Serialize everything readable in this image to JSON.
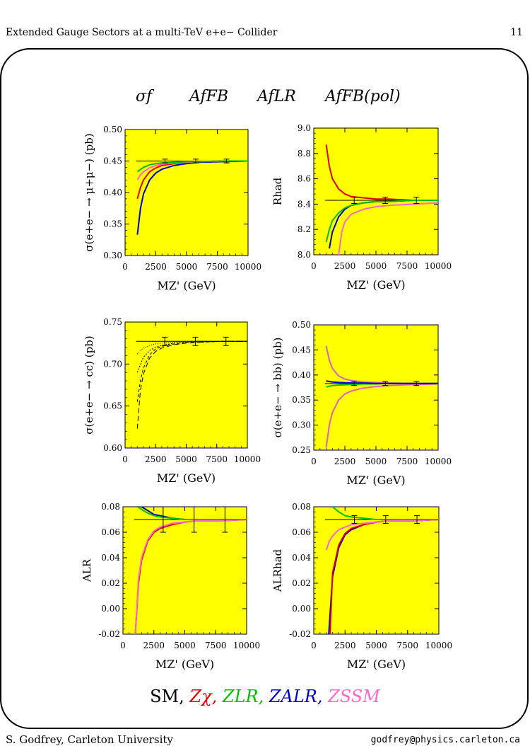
{
  "header": {
    "title": "Extended Gauge Sectors at a multi-TeV e+e− Collider",
    "page_number": "11"
  },
  "headline": {
    "sigma": "σf",
    "afb": "AfFB",
    "alr": "AfLR",
    "afb_pol": "AfFB(pol)"
  },
  "legend": {
    "items": [
      {
        "text": "SM,",
        "color": "#000000"
      },
      {
        "text": "Zχ,",
        "color": "#e00000"
      },
      {
        "text": "ZLR,",
        "color": "#00c000"
      },
      {
        "text": "ZALR,",
        "color": "#0000cc"
      },
      {
        "text": "ZSSM",
        "color": "#ff66cc"
      }
    ]
  },
  "footer": {
    "left": "S. Godfrey, Carleton University",
    "right": "godfrey@physics.carleton.ca"
  },
  "chart_data": [
    {
      "type": "line",
      "id": "mumu",
      "xlabel": "MZ'   (GeV)",
      "ylabel": "σ(e+e− → μ+μ−)  (pb)",
      "xlim": [
        0,
        10000
      ],
      "ylim": [
        0.3,
        0.5
      ],
      "xticks": [
        "0",
        "2500",
        "5000",
        "7500",
        "10000"
      ],
      "yticks": [
        "0.30",
        "0.35",
        "0.40",
        "0.45",
        "0.50"
      ],
      "sm_value": 0.45,
      "series": [
        {
          "color": "#0000cc",
          "x": [
            1000,
            1250,
            1500,
            2000,
            2500,
            3000,
            4000,
            5000,
            6000,
            8000,
            10000
          ],
          "y": [
            0.333,
            0.375,
            0.398,
            0.42,
            0.431,
            0.437,
            0.443,
            0.446,
            0.448,
            0.449,
            0.45
          ]
        },
        {
          "color": "#e00000",
          "x": [
            1000,
            1250,
            1500,
            2000,
            2500,
            3000,
            4000,
            5000,
            6000,
            8000,
            10000
          ],
          "y": [
            0.39,
            0.408,
            0.42,
            0.433,
            0.439,
            0.443,
            0.446,
            0.448,
            0.449,
            0.45,
            0.45
          ]
        },
        {
          "color": "#ff66cc",
          "x": [
            1000,
            1250,
            1500,
            2000,
            2500,
            3000,
            4000,
            5000,
            6000,
            8000,
            10000
          ],
          "y": [
            0.42,
            0.428,
            0.433,
            0.439,
            0.443,
            0.445,
            0.447,
            0.448,
            0.449,
            0.45,
            0.45
          ]
        },
        {
          "color": "#00c000",
          "x": [
            1000,
            1500,
            2000,
            2500,
            3000,
            4000,
            5000,
            6000,
            8000,
            10000
          ],
          "y": [
            0.433,
            0.44,
            0.444,
            0.446,
            0.447,
            0.448,
            0.449,
            0.449,
            0.45,
            0.45
          ]
        }
      ],
      "errorbars": [
        {
          "x": 3250,
          "y": 0.45,
          "err": 0.003
        },
        {
          "x": 5750,
          "y": 0.45,
          "err": 0.003
        },
        {
          "x": 8250,
          "y": 0.45,
          "err": 0.003
        }
      ]
    },
    {
      "type": "line",
      "id": "rhad",
      "xlabel": "MZ'   (GeV)",
      "ylabel": "Rhad",
      "xlim": [
        0,
        10000
      ],
      "ylim": [
        8.0,
        9.0
      ],
      "xticks": [
        "0",
        "2500",
        "5000",
        "7500",
        "10000"
      ],
      "yticks": [
        "8.0",
        "8.2",
        "8.4",
        "8.6",
        "8.8",
        "9.0"
      ],
      "sm_value": 8.43,
      "series": [
        {
          "color": "#e00000",
          "x": [
            1000,
            1250,
            1500,
            2000,
            2500,
            3000,
            4000,
            5000,
            6000,
            8000,
            10000
          ],
          "y": [
            8.87,
            8.7,
            8.6,
            8.52,
            8.48,
            8.46,
            8.45,
            8.44,
            8.44,
            8.43,
            8.43
          ]
        },
        {
          "color": "#ff66cc",
          "x": [
            2000,
            2250,
            2500,
            3000,
            4000,
            5000,
            6000,
            8000,
            10000
          ],
          "y": [
            8.0,
            8.18,
            8.26,
            8.32,
            8.36,
            8.38,
            8.39,
            8.4,
            8.41
          ]
        },
        {
          "color": "#0000cc",
          "x": [
            1250,
            1500,
            2000,
            2500,
            3000,
            4000,
            5000,
            6000,
            8000,
            10000
          ],
          "y": [
            8.05,
            8.18,
            8.3,
            8.36,
            8.39,
            8.41,
            8.42,
            8.42,
            8.43,
            8.43
          ]
        },
        {
          "color": "#00c000",
          "x": [
            1000,
            1250,
            1500,
            2000,
            2500,
            3000,
            4000,
            5000,
            6000,
            8000,
            10000
          ],
          "y": [
            8.1,
            8.2,
            8.27,
            8.33,
            8.37,
            8.39,
            8.41,
            8.42,
            8.42,
            8.43,
            8.43
          ]
        }
      ],
      "errorbars": [
        {
          "x": 3250,
          "y": 8.43,
          "err": 0.025
        },
        {
          "x": 5750,
          "y": 8.43,
          "err": 0.025
        },
        {
          "x": 8250,
          "y": 8.43,
          "err": 0.025
        }
      ]
    },
    {
      "type": "line",
      "id": "cc",
      "xlabel": "MZ'   (GeV)",
      "ylabel": "σ(e+e− → cc) (pb)",
      "xlim": [
        0,
        10000
      ],
      "ylim": [
        0.6,
        0.75
      ],
      "xticks": [
        "0",
        "2500",
        "5000",
        "7500",
        "10000"
      ],
      "yticks": [
        "0.60",
        "0.65",
        "0.70",
        "0.75"
      ],
      "sm_value": 0.727,
      "series": [
        {
          "color": "#000000",
          "dash": "7,4",
          "x": [
            1000,
            1250,
            1500,
            2000,
            2500,
            3000,
            4000,
            5000,
            6000,
            8000,
            10000
          ],
          "y": [
            0.623,
            0.668,
            0.688,
            0.707,
            0.715,
            0.719,
            0.723,
            0.725,
            0.726,
            0.727,
            0.727
          ]
        },
        {
          "color": "#000000",
          "dash": "4,3",
          "x": [
            1000,
            1250,
            1500,
            2000,
            2500,
            3000,
            4000,
            5000,
            6000,
            8000,
            10000
          ],
          "y": [
            0.655,
            0.68,
            0.695,
            0.711,
            0.718,
            0.721,
            0.724,
            0.726,
            0.726,
            0.727,
            0.727
          ]
        },
        {
          "color": "#000000",
          "dash": "2,2",
          "x": [
            1000,
            1500,
            2000,
            2500,
            3000,
            4000,
            5000,
            6000,
            8000,
            10000
          ],
          "y": [
            0.69,
            0.708,
            0.716,
            0.72,
            0.722,
            0.725,
            0.726,
            0.727,
            0.727,
            0.727
          ]
        },
        {
          "color": "#000000",
          "dash": "1,2",
          "x": [
            1000,
            1500,
            2000,
            2500,
            3000,
            4000,
            5000,
            6000,
            8000,
            10000
          ],
          "y": [
            0.712,
            0.719,
            0.722,
            0.724,
            0.725,
            0.726,
            0.727,
            0.727,
            0.727,
            0.727
          ]
        }
      ],
      "errorbars": [
        {
          "x": 3250,
          "y": 0.727,
          "err": 0.005
        },
        {
          "x": 5750,
          "y": 0.727,
          "err": 0.005
        },
        {
          "x": 8250,
          "y": 0.727,
          "err": 0.005
        }
      ]
    },
    {
      "type": "line",
      "id": "bb",
      "xlabel": "MZ'   (GeV)",
      "ylabel": "σ(e+e− → bb) (pb)",
      "xlim": [
        0,
        10000
      ],
      "ylim": [
        0.25,
        0.5
      ],
      "xticks": [
        "0",
        "2500",
        "5000",
        "7500",
        "10000"
      ],
      "yticks": [
        "0.25",
        "0.30",
        "0.35",
        "0.40",
        "0.45",
        "0.50"
      ],
      "sm_value": 0.383,
      "series": [
        {
          "color": "#e060c0",
          "x": [
            1000,
            1250,
            1500,
            2000,
            2500,
            3000,
            4000,
            5000,
            6000,
            8000,
            10000
          ],
          "y": [
            0.458,
            0.43,
            0.413,
            0.398,
            0.392,
            0.389,
            0.386,
            0.385,
            0.384,
            0.383,
            0.383
          ]
        },
        {
          "color": "#e060c0",
          "x": [
            1000,
            1250,
            1500,
            2000,
            2500,
            3000,
            4000,
            5000,
            6000,
            8000,
            10000
          ],
          "y": [
            0.255,
            0.3,
            0.325,
            0.35,
            0.362,
            0.368,
            0.374,
            0.377,
            0.379,
            0.381,
            0.382
          ]
        },
        {
          "color": "#00c000",
          "x": [
            1000,
            1500,
            2000,
            3000,
            4000,
            5000,
            6000,
            8000,
            10000
          ],
          "y": [
            0.376,
            0.379,
            0.38,
            0.381,
            0.382,
            0.382,
            0.383,
            0.383,
            0.383
          ]
        },
        {
          "color": "#0000cc",
          "x": [
            1000,
            1500,
            2000,
            3000,
            4000,
            5000,
            6000,
            8000,
            10000
          ],
          "y": [
            0.388,
            0.386,
            0.385,
            0.384,
            0.384,
            0.383,
            0.383,
            0.383,
            0.383
          ]
        }
      ],
      "errorbars": [
        {
          "x": 3250,
          "y": 0.383,
          "err": 0.004
        },
        {
          "x": 5750,
          "y": 0.383,
          "err": 0.004
        },
        {
          "x": 8250,
          "y": 0.383,
          "err": 0.004
        }
      ]
    },
    {
      "type": "line",
      "id": "alr",
      "xlabel": "MZ'   (GeV)",
      "ylabel": "ALR",
      "xlim": [
        0,
        10000
      ],
      "ylim": [
        -0.02,
        0.08
      ],
      "xticks": [
        "0",
        "2500",
        "5000",
        "7500",
        "10000"
      ],
      "yticks": [
        "-0.02",
        "0.00",
        "0.02",
        "0.04",
        "0.06",
        "0.08"
      ],
      "sm_value": 0.07,
      "series": [
        {
          "color": "#e00000",
          "x": [
            1000,
            1250,
            1500,
            2000,
            2500,
            3000,
            4000,
            5000,
            6000,
            8000,
            10000
          ],
          "y": [
            -0.02,
            0.02,
            0.038,
            0.053,
            0.06,
            0.063,
            0.066,
            0.068,
            0.069,
            0.069,
            0.07
          ]
        },
        {
          "color": "#ff66cc",
          "x": [
            1000,
            1250,
            1500,
            2000,
            2500,
            3000,
            4000,
            5000,
            6000,
            8000,
            10000
          ],
          "y": [
            -0.02,
            0.023,
            0.04,
            0.054,
            0.061,
            0.064,
            0.067,
            0.068,
            0.069,
            0.069,
            0.07
          ]
        },
        {
          "color": "#0000cc",
          "x": [
            1500,
            2000,
            2500,
            3000,
            4000,
            5000,
            6000,
            8000,
            10000
          ],
          "y": [
            0.08,
            0.077,
            0.074,
            0.073,
            0.071,
            0.07,
            0.07,
            0.07,
            0.07
          ]
        },
        {
          "color": "#00c000",
          "x": [
            1200,
            1500,
            2000,
            2500,
            3000,
            4000,
            5000,
            6000,
            8000,
            10000
          ],
          "y": [
            0.08,
            0.078,
            0.075,
            0.073,
            0.072,
            0.071,
            0.07,
            0.07,
            0.07,
            0.07
          ]
        }
      ],
      "errorbars": [
        {
          "x": 3250,
          "y": 0.07,
          "err": 0.01
        },
        {
          "x": 5750,
          "y": 0.07,
          "err": 0.01
        },
        {
          "x": 8250,
          "y": 0.07,
          "err": 0.01
        }
      ]
    },
    {
      "type": "line",
      "id": "alr_had",
      "xlabel": "MZ'   (GeV)",
      "ylabel": "ALRhad",
      "xlim": [
        0,
        10000
      ],
      "ylim": [
        -0.02,
        0.08
      ],
      "xticks": [
        "0",
        "2500",
        "5000",
        "7500",
        "10000"
      ],
      "yticks": [
        "-0.02",
        "0.00",
        "0.02",
        "0.04",
        "0.06",
        "0.08"
      ],
      "sm_value": 0.07,
      "series": [
        {
          "color": "#0000cc",
          "x": [
            1200,
            1500,
            2000,
            2500,
            3000,
            4000,
            5000,
            6000,
            8000,
            10000
          ],
          "y": [
            -0.02,
            0.025,
            0.048,
            0.058,
            0.062,
            0.066,
            0.068,
            0.069,
            0.069,
            0.07
          ]
        },
        {
          "color": "#e00000",
          "x": [
            1300,
            1500,
            2000,
            2500,
            3000,
            4000,
            5000,
            6000,
            8000,
            10000
          ],
          "y": [
            -0.02,
            0.028,
            0.05,
            0.059,
            0.063,
            0.066,
            0.068,
            0.069,
            0.069,
            0.07
          ]
        },
        {
          "color": "#ff66cc",
          "x": [
            1000,
            1250,
            1500,
            2000,
            2500,
            3000,
            4000,
            5000,
            6000,
            8000,
            10000
          ],
          "y": [
            0.046,
            0.053,
            0.057,
            0.062,
            0.064,
            0.066,
            0.067,
            0.068,
            0.069,
            0.069,
            0.07
          ]
        },
        {
          "color": "#00c000",
          "x": [
            1500,
            2000,
            2500,
            3000,
            4000,
            5000,
            6000,
            8000,
            10000
          ],
          "y": [
            0.08,
            0.076,
            0.073,
            0.072,
            0.071,
            0.07,
            0.07,
            0.07,
            0.07
          ]
        }
      ],
      "errorbars": [
        {
          "x": 3250,
          "y": 0.07,
          "err": 0.003
        },
        {
          "x": 5750,
          "y": 0.07,
          "err": 0.003
        },
        {
          "x": 8250,
          "y": 0.07,
          "err": 0.003
        }
      ]
    }
  ]
}
